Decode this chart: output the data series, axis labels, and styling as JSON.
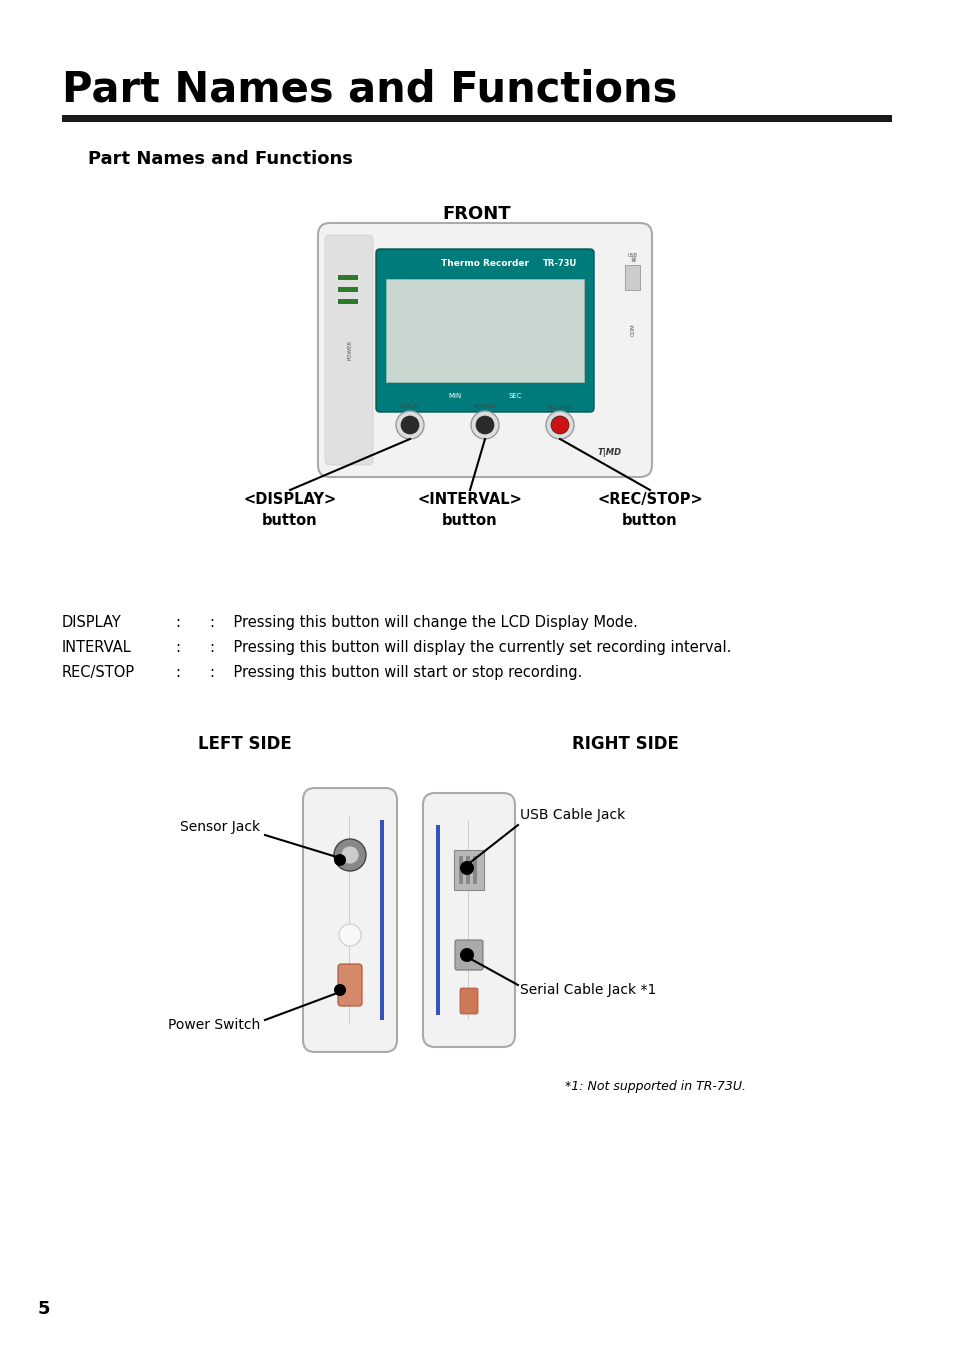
{
  "title": "Part Names and Functions",
  "subtitle": "Part Names and Functions",
  "front_label": "FRONT",
  "left_side_label": "LEFT SIDE",
  "right_side_label": "RIGHT SIDE",
  "display_button_label": "<DISPLAY>\nbutton",
  "interval_button_label": "<INTERVAL>\nbutton",
  "rec_stop_button_label": "<REC/STOP>\nbutton",
  "descs": [
    [
      "DISPLAY",
      ":    Pressing this button will change the LCD Display Mode."
    ],
    [
      "INTERVAL",
      ":    Pressing this button will display the currently set recording interval."
    ],
    [
      "REC/STOP",
      ":    Pressing this button will start or stop recording."
    ]
  ],
  "sensor_jack_label": "Sensor Jack",
  "power_switch_label": "Power Switch",
  "usb_cable_jack_label": "USB Cable Jack",
  "serial_cable_jack_label": "Serial Cable Jack *1",
  "footnote": "*1: Not supported in TR-73U.",
  "page_number": "5",
  "bg_color": "#ffffff",
  "text_color": "#000000",
  "teal_color": "#007b7b",
  "title_rule_color": "#1a1a1a",
  "device_fill": "#f2f2f2",
  "device_border": "#aaaaaa",
  "screen_teal": "#007b7b",
  "screen_bg": "#c5d9d5",
  "btn_dark": "#2a2a2a",
  "btn_red": "#cc1111",
  "blue_accent": "#3355bb"
}
